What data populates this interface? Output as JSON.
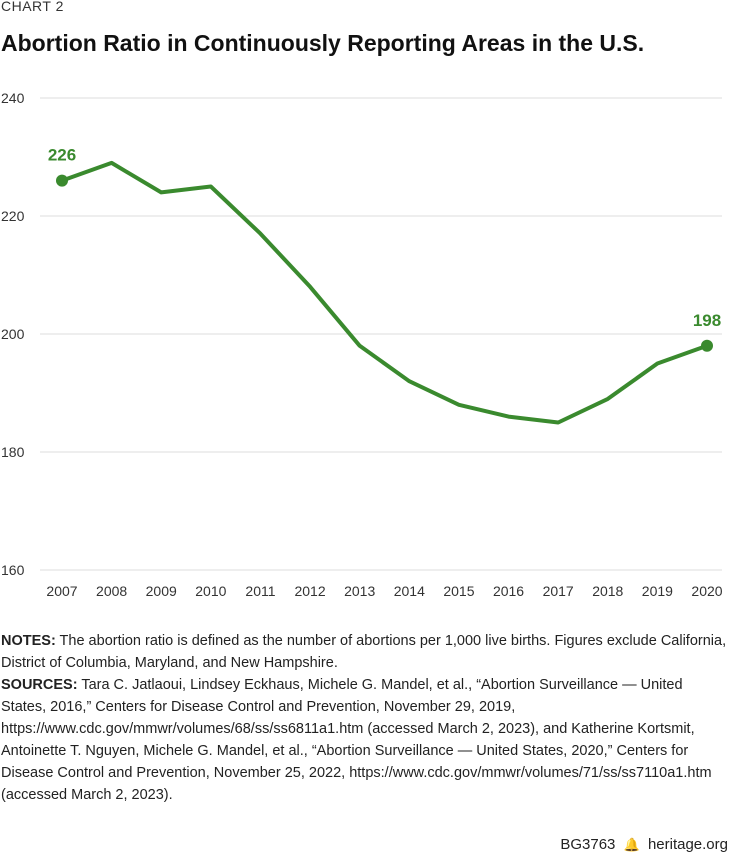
{
  "header": {
    "kicker": "CHART 2",
    "title": "Abortion Ratio in Continuously Reporting Areas in the U.S."
  },
  "chart_data": {
    "type": "line",
    "title": "Abortion Ratio in Continuously Reporting Areas in the U.S.",
    "xlabel": "",
    "ylabel": "",
    "x": [
      "2007",
      "2008",
      "2009",
      "2010",
      "2011",
      "2012",
      "2013",
      "2014",
      "2015",
      "2016",
      "2017",
      "2018",
      "2019",
      "2020"
    ],
    "series": [
      {
        "name": "Abortion ratio",
        "values": [
          226,
          229,
          224,
          225,
          217,
          208,
          198,
          192,
          188,
          186,
          185,
          189,
          195,
          198
        ]
      }
    ],
    "ylim": [
      160,
      240
    ],
    "yticks": [
      160,
      180,
      200,
      220,
      240
    ],
    "grid": true,
    "annotations": [
      {
        "x": "2007",
        "value": 226,
        "label": "226"
      },
      {
        "x": "2020",
        "value": 198,
        "label": "198"
      }
    ],
    "color": "#3a8a2e"
  },
  "notes": {
    "notes_label": "NOTES:",
    "notes_text": " The abortion ratio is defined as the number of abortions per 1,000 live births. Figures exclude California, District of Columbia, Maryland, and New Hampshire.",
    "sources_label": "SOURCES:",
    "sources_text": " Tara C. Jatlaoui, Lindsey Eckhaus, Michele G. Mandel, et al., “Abortion Surveillance — United States, 2016,” Centers for Disease Control and Prevention, November 29, 2019, https://www.cdc.gov/mmwr/volumes/68/ss/ss6811a1.htm (accessed March 2, 2023), and Katherine Kortsmit, Antoinette T. Nguyen, Michele G. Mandel, et al., “Abortion Surveillance — United States, 2020,” Centers for Disease Control and Prevention, November 25, 2022, https://www.cdc.gov/mmwr/volumes/71/ss/ss7110a1.htm (accessed March 2, 2023)."
  },
  "footer": {
    "code": "BG3763",
    "icon": "liberty-bell-icon",
    "site": "heritage.org"
  }
}
